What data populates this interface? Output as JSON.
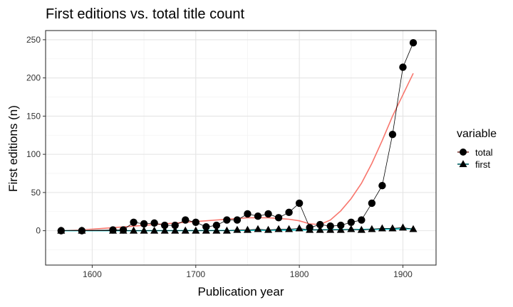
{
  "chart_data": {
    "type": "line",
    "title": "First editions vs. total title count",
    "xlabel": "Publication year",
    "ylabel": "First editions (n)",
    "xlim": [
      1555,
      1932
    ],
    "ylim": [
      -45,
      262
    ],
    "xticks": [
      1600,
      1700,
      1800,
      1900
    ],
    "yticks": [
      0,
      50,
      100,
      150,
      200,
      250
    ],
    "xminor": [
      1650,
      1750,
      1850
    ],
    "yminor": [
      -25,
      25,
      75,
      125,
      175,
      225
    ],
    "grid": true,
    "legend": {
      "title": "variable",
      "position": "right"
    },
    "series": [
      {
        "name": "total",
        "marker": "circle",
        "x": [
          1570,
          1590,
          1620,
          1630,
          1640,
          1650,
          1660,
          1670,
          1680,
          1690,
          1700,
          1710,
          1720,
          1730,
          1740,
          1750,
          1760,
          1770,
          1780,
          1790,
          1800,
          1810,
          1820,
          1830,
          1840,
          1850,
          1860,
          1870,
          1880,
          1890,
          1900,
          1910
        ],
        "y": [
          0,
          0,
          1,
          1,
          11,
          9,
          10,
          7,
          7,
          14,
          11,
          5,
          7,
          14,
          14,
          22,
          19,
          22,
          17,
          24,
          36,
          4,
          8,
          6,
          7,
          11,
          14,
          36,
          59,
          126,
          214,
          246
        ]
      },
      {
        "name": "first",
        "marker": "triangle",
        "x": [
          1570,
          1590,
          1620,
          1630,
          1640,
          1650,
          1660,
          1670,
          1680,
          1690,
          1700,
          1710,
          1720,
          1730,
          1740,
          1750,
          1760,
          1770,
          1780,
          1790,
          1800,
          1810,
          1820,
          1830,
          1840,
          1850,
          1860,
          1870,
          1880,
          1890,
          1900,
          1910
        ],
        "y": [
          0,
          0,
          0,
          0,
          0,
          0,
          0,
          0,
          0,
          0,
          0,
          0,
          0,
          0,
          1,
          1,
          2,
          1,
          2,
          2,
          3,
          1,
          1,
          1,
          1,
          2,
          1,
          2,
          3,
          3,
          4,
          2
        ]
      }
    ],
    "smooth": [
      {
        "series": "total",
        "color": "#F8766D",
        "x": [
          1570,
          1590,
          1610,
          1630,
          1650,
          1670,
          1690,
          1710,
          1730,
          1750,
          1770,
          1790,
          1800,
          1810,
          1820,
          1830,
          1840,
          1850,
          1860,
          1870,
          1880,
          1890,
          1900,
          1910
        ],
        "y": [
          0,
          1,
          3,
          5,
          7,
          9,
          11,
          13,
          15,
          17,
          17,
          15,
          13,
          9,
          8,
          14,
          26,
          42,
          62,
          88,
          118,
          150,
          178,
          206
        ]
      },
      {
        "series": "first",
        "color": "#00BFC4",
        "x": [
          1570,
          1650,
          1730,
          1800,
          1850,
          1910
        ],
        "y": [
          0,
          0,
          0.3,
          1,
          1.5,
          2.5
        ]
      }
    ]
  }
}
